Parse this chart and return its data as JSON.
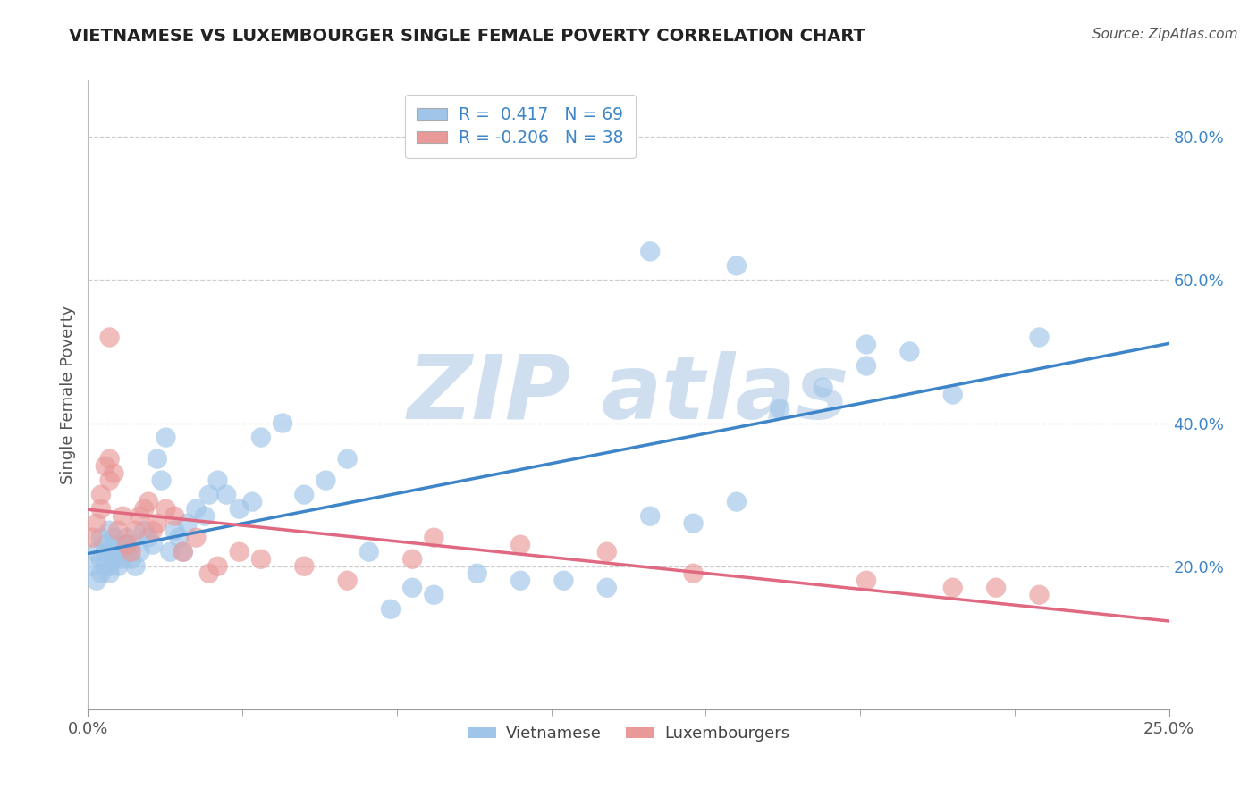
{
  "title": "VIETNAMESE VS LUXEMBOURGER SINGLE FEMALE POVERTY CORRELATION CHART",
  "source": "Source: ZipAtlas.com",
  "ylabel": "Single Female Poverty",
  "y_tick_vals": [
    0.2,
    0.4,
    0.6,
    0.8
  ],
  "y_tick_labels": [
    "20.0%",
    "40.0%",
    "60.0%",
    "80.0%"
  ],
  "x_tick_vals": [
    0.0,
    0.25
  ],
  "x_tick_labels": [
    "0.0%",
    "25.0%"
  ],
  "xlim": [
    0.0,
    0.25
  ],
  "ylim": [
    0.0,
    0.88
  ],
  "r_vietnamese": 0.417,
  "n_vietnamese": 69,
  "r_luxembourger": -0.206,
  "n_luxembourger": 38,
  "color_vietnamese": "#9fc5e8",
  "color_luxembourger": "#ea9999",
  "line_color_vietnamese": "#3d85c8",
  "line_color_luxembourger": "#e06880",
  "grid_color": "#cccccc",
  "background_color": "#ffffff",
  "title_color": "#222222",
  "source_color": "#555555",
  "ylabel_color": "#555555",
  "ytick_color": "#3d85c8",
  "xtick_color": "#555555",
  "watermark_color": "#d0dff0",
  "legend_text_color": "#3d85c8",
  "legend_top_text1": "R =  0.417   N = 69",
  "legend_top_text2": "R = -0.206   N = 38",
  "legend_bot_label1": "Vietnamese",
  "legend_bot_label2": "Luxembourgers",
  "viet_x": [
    0.001,
    0.002,
    0.002,
    0.003,
    0.003,
    0.003,
    0.004,
    0.004,
    0.004,
    0.005,
    0.005,
    0.005,
    0.005,
    0.006,
    0.006,
    0.006,
    0.007,
    0.007,
    0.008,
    0.008,
    0.009,
    0.009,
    0.01,
    0.01,
    0.011,
    0.012,
    0.013,
    0.014,
    0.015,
    0.016,
    0.017,
    0.018,
    0.019,
    0.02,
    0.021,
    0.022,
    0.023,
    0.025,
    0.027,
    0.028,
    0.03,
    0.032,
    0.035,
    0.038,
    0.04,
    0.045,
    0.05,
    0.055,
    0.06,
    0.065,
    0.07,
    0.075,
    0.08,
    0.09,
    0.1,
    0.11,
    0.12,
    0.13,
    0.14,
    0.15,
    0.16,
    0.17,
    0.18,
    0.19,
    0.2,
    0.13,
    0.15,
    0.18,
    0.22
  ],
  "viet_y": [
    0.2,
    0.22,
    0.18,
    0.24,
    0.21,
    0.19,
    0.23,
    0.2,
    0.22,
    0.25,
    0.19,
    0.22,
    0.2,
    0.23,
    0.21,
    0.24,
    0.22,
    0.2,
    0.23,
    0.21,
    0.24,
    0.22,
    0.21,
    0.23,
    0.2,
    0.22,
    0.25,
    0.24,
    0.23,
    0.35,
    0.32,
    0.38,
    0.22,
    0.25,
    0.24,
    0.22,
    0.26,
    0.28,
    0.27,
    0.3,
    0.32,
    0.3,
    0.28,
    0.29,
    0.38,
    0.4,
    0.3,
    0.32,
    0.35,
    0.22,
    0.14,
    0.17,
    0.16,
    0.19,
    0.18,
    0.18,
    0.17,
    0.27,
    0.26,
    0.29,
    0.42,
    0.45,
    0.48,
    0.5,
    0.44,
    0.64,
    0.62,
    0.51,
    0.52
  ],
  "lux_x": [
    0.001,
    0.002,
    0.003,
    0.003,
    0.004,
    0.005,
    0.005,
    0.006,
    0.007,
    0.008,
    0.009,
    0.01,
    0.011,
    0.012,
    0.013,
    0.014,
    0.015,
    0.016,
    0.018,
    0.02,
    0.022,
    0.025,
    0.028,
    0.03,
    0.035,
    0.04,
    0.05,
    0.06,
    0.075,
    0.08,
    0.1,
    0.12,
    0.14,
    0.18,
    0.2,
    0.21,
    0.22,
    0.005
  ],
  "lux_y": [
    0.24,
    0.26,
    0.28,
    0.3,
    0.34,
    0.32,
    0.35,
    0.33,
    0.25,
    0.27,
    0.23,
    0.22,
    0.25,
    0.27,
    0.28,
    0.29,
    0.25,
    0.26,
    0.28,
    0.27,
    0.22,
    0.24,
    0.19,
    0.2,
    0.22,
    0.21,
    0.2,
    0.18,
    0.21,
    0.24,
    0.23,
    0.22,
    0.19,
    0.18,
    0.17,
    0.17,
    0.16,
    0.52
  ]
}
